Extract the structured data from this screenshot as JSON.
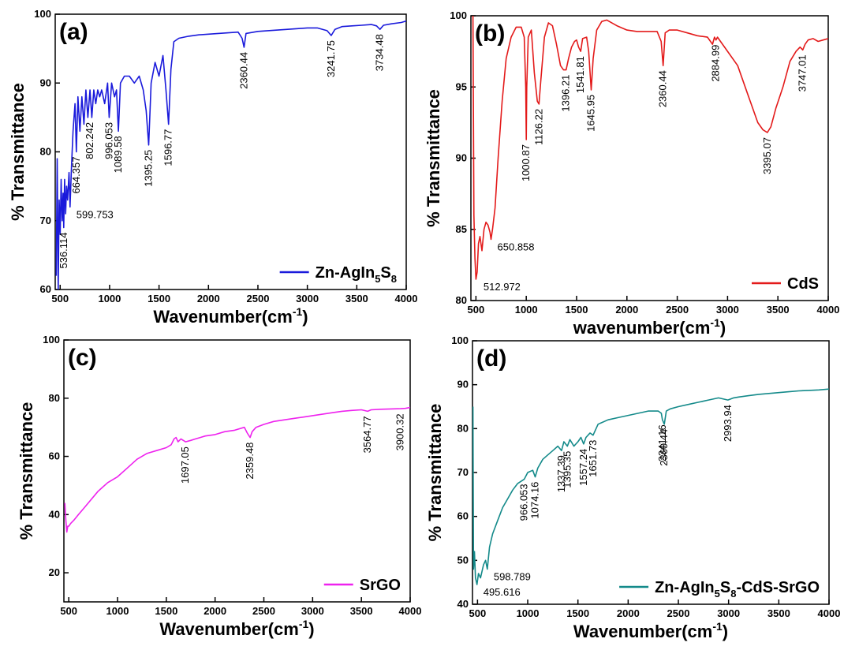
{
  "chart_data": [
    {
      "type": "line",
      "panel_label": "(a)",
      "xlabel": "Wavenumber(cm",
      "xlabel_sup": "-1",
      "xlabel_end": ")",
      "ylabel": "% Transmittance",
      "xlim": [
        450,
        4000
      ],
      "ylim": [
        60,
        100
      ],
      "xticks": [
        500,
        1000,
        1500,
        2000,
        2500,
        3000,
        3500,
        4000
      ],
      "yticks": [
        60,
        70,
        80,
        90,
        100
      ],
      "color": "#1a1adb",
      "legend": {
        "text": "Zn-AgIn",
        "sub1": "5",
        "mid": "S",
        "sub2": "8",
        "position": "bottom-right"
      },
      "series": [
        {
          "x": [
            460,
            470,
            480,
            490,
            500,
            510,
            520,
            530,
            536,
            545,
            555,
            565,
            575,
            590,
            600,
            615,
            630,
            650,
            664,
            680,
            700,
            720,
            740,
            760,
            780,
            802,
            820,
            840,
            860,
            880,
            900,
            920,
            950,
            980,
            996,
            1020,
            1050,
            1070,
            1089,
            1110,
            1150,
            1200,
            1250,
            1300,
            1340,
            1370,
            1395,
            1420,
            1460,
            1500,
            1540,
            1570,
            1596,
            1620,
            1650,
            1700,
            1800,
            1900,
            2000,
            2100,
            2200,
            2300,
            2340,
            2360,
            2380,
            2420,
            2500,
            2600,
            2700,
            2800,
            2900,
            3000,
            3100,
            3200,
            3241,
            3280,
            3350,
            3450,
            3550,
            3650,
            3700,
            3734,
            3770,
            3850,
            3950,
            4000
          ],
          "y": [
            62,
            79,
            60,
            73,
            68,
            76,
            70,
            74,
            69,
            76,
            71,
            75,
            73,
            77,
            72,
            78,
            83,
            87,
            80,
            88,
            83,
            88,
            84,
            89,
            85,
            89,
            85,
            89,
            87,
            89,
            88,
            89,
            87,
            90,
            85,
            90,
            88,
            89,
            83,
            90,
            91,
            91,
            90,
            91,
            89,
            86,
            81,
            90,
            93,
            91,
            94,
            89,
            84,
            92,
            96,
            96.5,
            96.8,
            97,
            97.1,
            97.2,
            97.3,
            97.4,
            96.5,
            95.2,
            97.2,
            97.3,
            97.5,
            97.6,
            97.7,
            97.8,
            97.9,
            98,
            98,
            97.6,
            96.9,
            97.8,
            98.2,
            98.3,
            98.4,
            98.5,
            98.3,
            97.8,
            98.4,
            98.6,
            98.8,
            99
          ]
        }
      ],
      "annotations": [
        {
          "text": "536.114",
          "x": 536,
          "y": 69
        },
        {
          "text": "599.753",
          "x": 600,
          "y": 72
        },
        {
          "text": "664.357",
          "x": 664,
          "y": 80
        },
        {
          "text": "802.242",
          "x": 802,
          "y": 85
        },
        {
          "text": "996.053",
          "x": 996,
          "y": 85
        },
        {
          "text": "1089.58",
          "x": 1089,
          "y": 83
        },
        {
          "text": "1395.25",
          "x": 1395,
          "y": 81
        },
        {
          "text": "1596.77",
          "x": 1596,
          "y": 84
        },
        {
          "text": "2360.44",
          "x": 2360,
          "y": 95.2
        },
        {
          "text": "3241.75",
          "x": 3241,
          "y": 96.9
        },
        {
          "text": "3734.48",
          "x": 3734,
          "y": 97.8
        }
      ]
    },
    {
      "type": "line",
      "panel_label": "(b)",
      "xlabel": "wavenumber(cm",
      "xlabel_sup": "-1",
      "xlabel_end": ")",
      "ylabel": "% Transmittance",
      "xlim": [
        450,
        4000
      ],
      "ylim": [
        80,
        100
      ],
      "xticks": [
        500,
        1000,
        1500,
        2000,
        2500,
        3000,
        3500,
        4000
      ],
      "yticks": [
        80,
        85,
        90,
        95,
        100
      ],
      "color": "#e31a1a",
      "legend": {
        "text": "CdS",
        "position": "bottom-right"
      },
      "series": [
        {
          "x": [
            470,
            480,
            490,
            500,
            512,
            525,
            540,
            560,
            580,
            600,
            620,
            640,
            650,
            665,
            690,
            720,
            760,
            800,
            850,
            900,
            950,
            980,
            995,
            1000,
            1005,
            1020,
            1050,
            1080,
            1110,
            1126,
            1145,
            1180,
            1220,
            1260,
            1300,
            1340,
            1370,
            1396,
            1420,
            1450,
            1480,
            1500,
            1520,
            1541,
            1560,
            1600,
            1620,
            1645,
            1665,
            1700,
            1750,
            1800,
            1900,
            2000,
            2100,
            2200,
            2300,
            2340,
            2360,
            2380,
            2420,
            2500,
            2600,
            2700,
            2800,
            2850,
            2870,
            2885,
            2900,
            2950,
            3000,
            3100,
            3200,
            3300,
            3350,
            3395,
            3430,
            3480,
            3550,
            3620,
            3680,
            3720,
            3747,
            3770,
            3800,
            3850,
            3900,
            3950,
            4000
          ],
          "y": [
            100,
            86,
            83,
            81.5,
            82,
            84,
            84.5,
            83.5,
            85,
            85.5,
            85.3,
            84.8,
            84.3,
            85,
            86.5,
            90,
            94,
            97,
            98.5,
            99.2,
            99.2,
            98.5,
            95,
            91.3,
            95,
            98.5,
            99,
            96,
            94,
            93.8,
            95.5,
            98.5,
            99.5,
            99.3,
            98,
            96.5,
            96.2,
            96.2,
            97,
            97.8,
            98.2,
            98.3,
            97.8,
            97.5,
            98.4,
            98.5,
            97.5,
            94.8,
            97,
            99,
            99.6,
            99.7,
            99.3,
            99,
            98.9,
            98.9,
            98.9,
            98.2,
            96.5,
            98.8,
            99,
            99,
            98.8,
            98.6,
            98.5,
            98,
            98.5,
            98.3,
            98.5,
            98,
            97.5,
            96.5,
            94.5,
            92.5,
            92,
            91.8,
            92.2,
            93.5,
            95,
            96.8,
            97.5,
            97.8,
            97.6,
            98,
            98.3,
            98.4,
            98.2,
            98.3,
            98.4
          ]
        }
      ],
      "annotations": [
        {
          "text": "512.972",
          "x": 512,
          "y": 81.5
        },
        {
          "text": "650.858",
          "x": 650,
          "y": 84.3
        },
        {
          "text": "1000.87",
          "x": 1000,
          "y": 91.3
        },
        {
          "text": "1126.22",
          "x": 1126,
          "y": 93.8
        },
        {
          "text": "1396.21",
          "x": 1396,
          "y": 96.2
        },
        {
          "text": "1541.81",
          "x": 1541,
          "y": 97.5
        },
        {
          "text": "1645.95",
          "x": 1645,
          "y": 94.8
        },
        {
          "text": "2360.44",
          "x": 2360,
          "y": 96.5
        },
        {
          "text": "2884.99",
          "x": 2885,
          "y": 98.3
        },
        {
          "text": "3395.07",
          "x": 3395,
          "y": 91.8
        },
        {
          "text": "3747.01",
          "x": 3747,
          "y": 97.6
        }
      ]
    },
    {
      "type": "line",
      "panel_label": "(c)",
      "xlabel": "Wavenumber(cm",
      "xlabel_sup": "-1",
      "xlabel_end": ")",
      "ylabel": "% Transmittance",
      "xlim": [
        450,
        4000
      ],
      "ylim": [
        10,
        100
      ],
      "xticks": [
        500,
        1000,
        1500,
        2000,
        2500,
        3000,
        3500,
        4000
      ],
      "yticks": [
        20,
        40,
        60,
        80,
        100
      ],
      "color": "#ee22ee",
      "legend": {
        "text": "SrGO",
        "position": "bottom-right"
      },
      "series": [
        {
          "x": [
            460,
            470,
            480,
            490,
            500,
            520,
            550,
            600,
            650,
            700,
            800,
            900,
            1000,
            1100,
            1200,
            1300,
            1400,
            1500,
            1550,
            1580,
            1600,
            1620,
            1650,
            1697,
            1750,
            1800,
            1900,
            2000,
            2100,
            2200,
            2300,
            2330,
            2359,
            2380,
            2420,
            2500,
            2600,
            2700,
            2800,
            2900,
            3000,
            3100,
            3200,
            3300,
            3400,
            3500,
            3564,
            3600,
            3700,
            3800,
            3900,
            3950,
            4000
          ],
          "y": [
            44,
            38,
            34,
            36,
            36,
            37,
            38,
            40,
            42,
            44,
            48,
            51,
            53,
            56,
            59,
            61,
            62,
            63,
            64,
            66,
            66.5,
            65,
            66,
            65,
            65.5,
            66,
            67,
            67.5,
            68.5,
            69,
            70,
            68,
            66.5,
            68.5,
            70,
            71,
            72,
            72.5,
            73,
            73.5,
            74,
            74.5,
            75,
            75.5,
            75.8,
            76,
            75.5,
            76,
            76.2,
            76.3,
            76.4,
            76.5,
            76.8
          ]
        }
      ],
      "annotations": [
        {
          "text": "1697.05",
          "x": 1697,
          "y": 65
        },
        {
          "text": "2359.48",
          "x": 2359,
          "y": 66.5
        },
        {
          "text": "3564.77",
          "x": 3564,
          "y": 75.5
        },
        {
          "text": "3900.32",
          "x": 3900,
          "y": 76.3
        }
      ]
    },
    {
      "type": "line",
      "panel_label": "(d)",
      "xlabel": "Wavenumber(cm",
      "xlabel_sup": "-1",
      "xlabel_end": ")",
      "ylabel": "% Transmittance",
      "xlim": [
        450,
        4000
      ],
      "ylim": [
        40,
        100
      ],
      "xticks": [
        500,
        1000,
        1500,
        2000,
        2500,
        3000,
        3500,
        4000
      ],
      "yticks": [
        40,
        50,
        60,
        70,
        80,
        90,
        100
      ],
      "color": "#148a8a",
      "legend": {
        "text": "Zn-AgIn",
        "sub1": "5",
        "mid": "S",
        "sub2": "8",
        "end": "-CdS-SrGO",
        "position": "bottom-right"
      },
      "series": [
        {
          "x": [
            455,
            460,
            470,
            480,
            495,
            510,
            530,
            560,
            580,
            598,
            620,
            650,
            700,
            750,
            800,
            850,
            900,
            966,
            1000,
            1050,
            1074,
            1100,
            1150,
            1200,
            1250,
            1300,
            1337,
            1360,
            1395,
            1420,
            1460,
            1500,
            1530,
            1557,
            1580,
            1620,
            1651,
            1700,
            1800,
            1900,
            2000,
            2100,
            2200,
            2300,
            2330,
            2341,
            2360,
            2380,
            2420,
            2500,
            2600,
            2700,
            2800,
            2900,
            2993,
            3050,
            3100,
            3200,
            3300,
            3400,
            3500,
            3600,
            3700,
            3800,
            3900,
            4000
          ],
          "y": [
            85,
            48,
            52,
            46,
            44.5,
            47,
            46,
            49,
            50,
            48,
            53,
            56,
            59,
            62,
            64,
            66,
            67.5,
            68.5,
            70,
            70.5,
            69,
            71,
            73,
            74,
            75,
            76,
            75,
            77,
            76,
            77.5,
            76,
            77,
            78,
            76.5,
            78,
            79,
            78.5,
            81,
            82,
            82.5,
            83,
            83.5,
            84,
            84,
            83.5,
            82,
            81,
            84,
            84.5,
            85,
            85.5,
            86,
            86.5,
            87,
            86.5,
            87,
            87.2,
            87.5,
            87.8,
            88,
            88.2,
            88.4,
            88.6,
            88.7,
            88.8,
            89
          ]
        }
      ],
      "annotations": [
        {
          "text": "598.789",
          "x": 598,
          "y": 48
        },
        {
          "text": "495.616",
          "x": 495,
          "y": 44.5
        },
        {
          "text": "966.053",
          "x": 966,
          "y": 68.5
        },
        {
          "text": "1074.16",
          "x": 1074,
          "y": 69
        },
        {
          "text": "1337.39",
          "x": 1337,
          "y": 75
        },
        {
          "text": "1395.35",
          "x": 1395,
          "y": 76
        },
        {
          "text": "1557.24",
          "x": 1557,
          "y": 76.5
        },
        {
          "text": "1651.73",
          "x": 1651,
          "y": 78.5
        },
        {
          "text": "2341.16",
          "x": 2341,
          "y": 82
        },
        {
          "text": "2360.44",
          "x": 2360,
          "y": 81
        },
        {
          "text": "2993.94",
          "x": 2993,
          "y": 86.5
        }
      ]
    }
  ]
}
